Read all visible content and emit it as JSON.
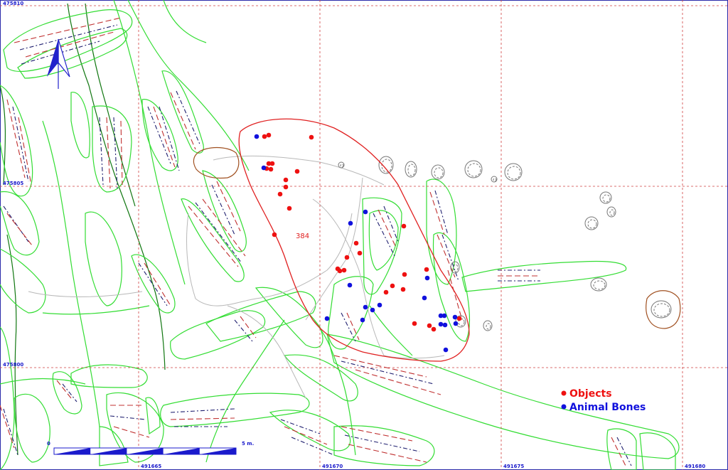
{
  "map": {
    "feature_label": "384",
    "north_arrow": "north-arrow-icon",
    "grid": {
      "northing_labels": [
        "475810",
        "475805",
        "475800"
      ],
      "easting_labels": [
        "491665",
        "491670",
        "491675",
        "491680"
      ]
    },
    "scale_bar": {
      "start_label": "0",
      "end_label": "5 m."
    },
    "colors": {
      "grid": "#d04040",
      "contours": "#33dd33",
      "excavation_boundary": "#e02020",
      "objects": "#ee1111",
      "animal_bones": "#1111dd",
      "coord_text": "#1a1acc",
      "features_brown": "#a05020"
    },
    "legend": {
      "items": [
        {
          "label": "Objects",
          "color": "#ee1111"
        },
        {
          "label": "Animal Bones",
          "color": "#1111dd"
        }
      ]
    }
  }
}
